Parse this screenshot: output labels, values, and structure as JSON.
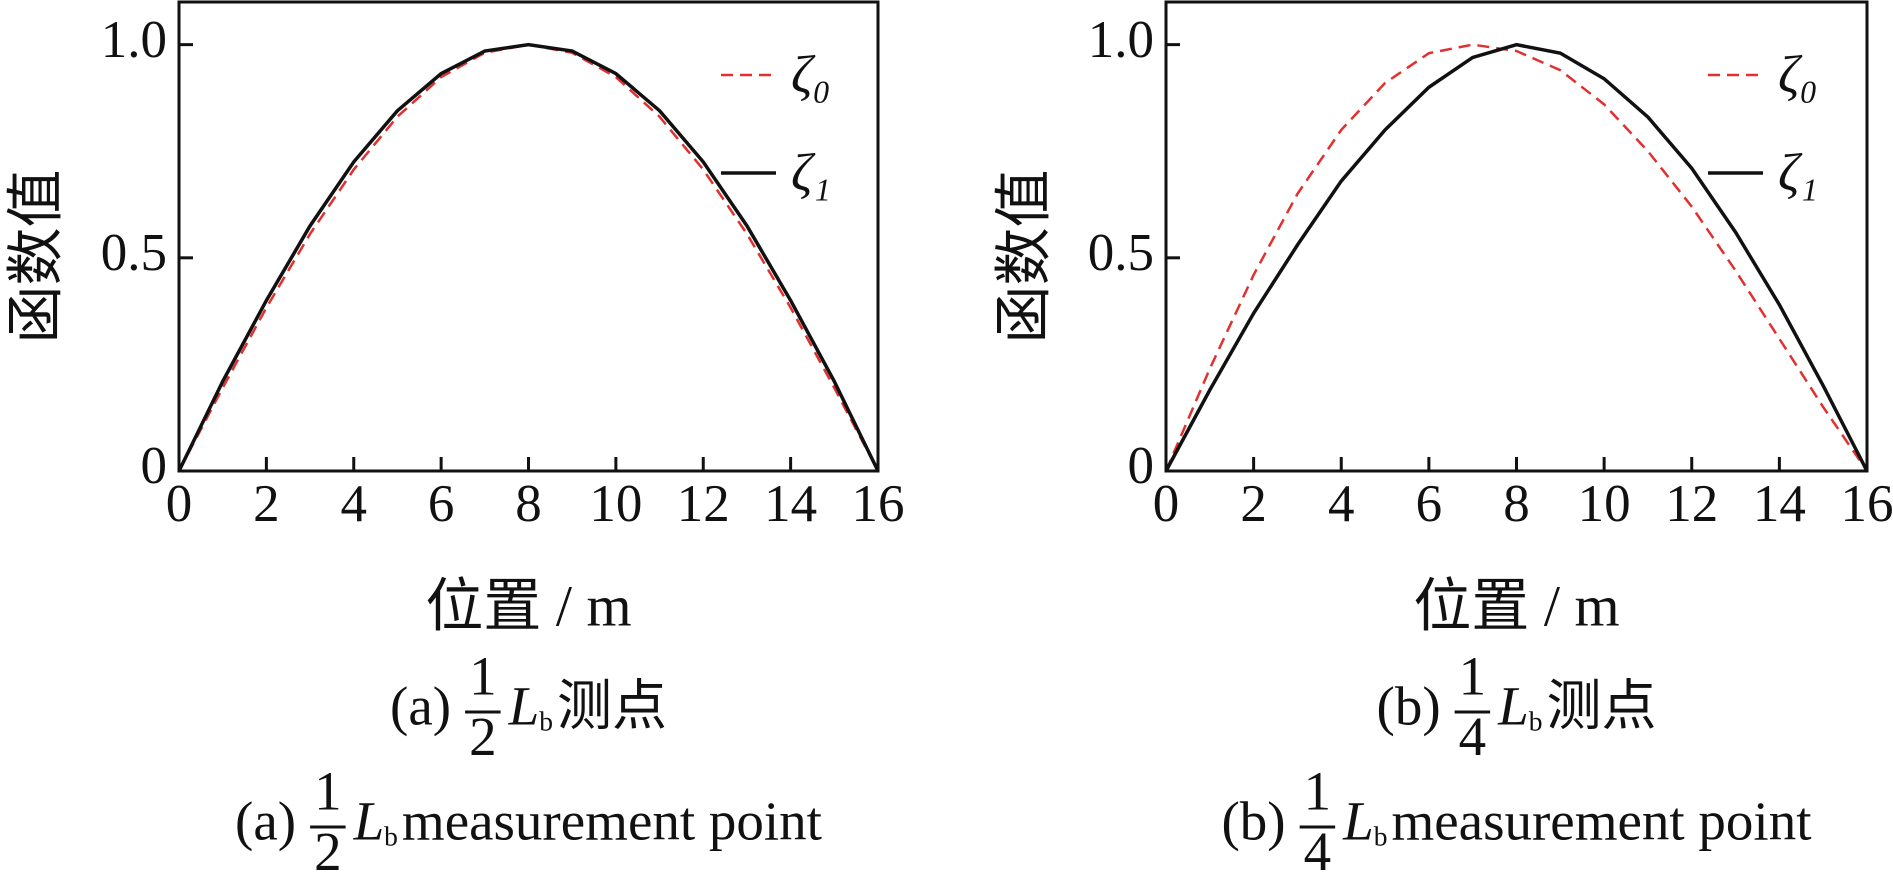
{
  "chart_data": [
    {
      "type": "line",
      "y_label": "函数值",
      "x_label": "位置 / m",
      "caption": {
        "prefix": "(a)",
        "numerator": "1",
        "denominator": "2",
        "symbol": "L",
        "subscript": "b",
        "suffix": "测点"
      },
      "caption_en": {
        "prefix": "(a)",
        "numerator": "1",
        "denominator": "2",
        "symbol": "L",
        "subscript": "b",
        "suffix": "measurement point"
      },
      "x": [
        0,
        1,
        2,
        3,
        4,
        5,
        6,
        7,
        8,
        9,
        10,
        11,
        12,
        13,
        14,
        15,
        16
      ],
      "series": [
        {
          "name": "ζ₀",
          "color": "#e03030",
          "dashed": true,
          "values": [
            0,
            0.195,
            0.383,
            0.556,
            0.707,
            0.831,
            0.924,
            0.981,
            1,
            0.981,
            0.924,
            0.831,
            0.707,
            0.556,
            0.383,
            0.195,
            0
          ]
        },
        {
          "name": "ζ₁",
          "color": "#111111",
          "dashed": false,
          "values": [
            0,
            0.21,
            0.4,
            0.575,
            0.725,
            0.845,
            0.932,
            0.985,
            1,
            0.985,
            0.932,
            0.845,
            0.725,
            0.575,
            0.4,
            0.21,
            0
          ]
        }
      ],
      "xlim": [
        0,
        16
      ],
      "ylim": [
        0,
        1.1
      ],
      "xticks": [
        0,
        2,
        4,
        6,
        8,
        10,
        12,
        14,
        16
      ],
      "yticks": [
        0,
        0.5,
        {
          "value": 1,
          "label": "1.0"
        }
      ]
    },
    {
      "type": "line",
      "y_label": "函数值",
      "x_label": "位置 / m",
      "caption": {
        "prefix": "(b)",
        "numerator": "1",
        "denominator": "4",
        "symbol": "L",
        "subscript": "b",
        "suffix": "测点"
      },
      "caption_en": {
        "prefix": "(b)",
        "numerator": "1",
        "denominator": "4",
        "symbol": "L",
        "subscript": "b",
        "suffix": "measurement point"
      },
      "x": [
        0,
        1,
        2,
        3,
        4,
        5,
        6,
        7,
        8,
        9,
        10,
        11,
        12,
        13,
        14,
        15,
        16
      ],
      "series": [
        {
          "name": "ζ₀",
          "color": "#e03030",
          "dashed": true,
          "values": [
            0,
            0.24,
            0.46,
            0.65,
            0.8,
            0.91,
            0.98,
            1,
            0.985,
            0.94,
            0.86,
            0.75,
            0.62,
            0.47,
            0.31,
            0.15,
            0
          ]
        },
        {
          "name": "ζ₁",
          "color": "#111111",
          "dashed": false,
          "values": [
            0,
            0.19,
            0.37,
            0.53,
            0.68,
            0.8,
            0.9,
            0.97,
            1,
            0.98,
            0.92,
            0.83,
            0.71,
            0.56,
            0.39,
            0.2,
            0
          ]
        }
      ],
      "xlim": [
        0,
        16
      ],
      "ylim": [
        0,
        1.1
      ],
      "xticks": [
        0,
        2,
        4,
        6,
        8,
        10,
        12,
        14,
        16
      ],
      "yticks": [
        0,
        0.5,
        {
          "value": 1,
          "label": "1.0"
        }
      ]
    }
  ]
}
